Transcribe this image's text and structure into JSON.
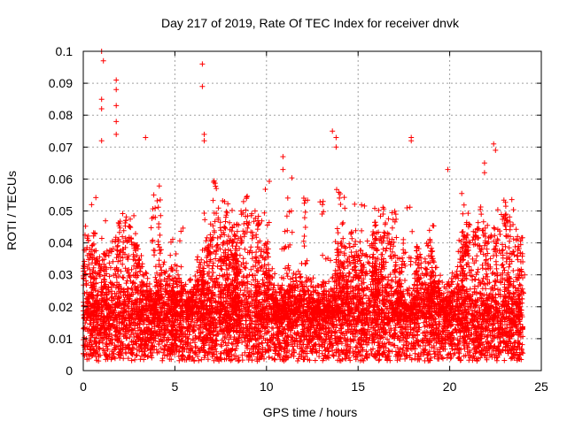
{
  "chart_data": {
    "type": "scatter",
    "title": "Day 217 of 2019, Rate Of TEC Index for receiver dnvk",
    "xlabel": "GPS time / hours",
    "ylabel": "ROTI / TECUs",
    "xlim": [
      0,
      25
    ],
    "ylim": [
      0,
      0.1
    ],
    "x_ticks": [
      0,
      5,
      10,
      15,
      20,
      25
    ],
    "x_tick_labels": [
      "0",
      "5",
      "10",
      "15",
      "20",
      "25"
    ],
    "y_ticks": [
      0,
      0.01,
      0.02,
      0.03,
      0.04,
      0.05,
      0.06,
      0.07,
      0.08,
      0.09,
      0.1
    ],
    "y_tick_labels": [
      "0",
      "0.01",
      "0.02",
      "0.03",
      "0.04",
      "0.05",
      "0.06",
      "0.07",
      "0.08",
      "0.09",
      "0.1"
    ],
    "grid": true,
    "marker": "plus",
    "color": "#ff0000",
    "series": [
      {
        "name": "ROTI",
        "x_range": [
          0,
          24
        ],
        "dense_band": [
          0.005,
          0.03
        ],
        "notable_points": [
          {
            "x": 1.0,
            "y": 0.1
          },
          {
            "x": 1.1,
            "y": 0.097
          },
          {
            "x": 1.0,
            "y": 0.085
          },
          {
            "x": 1.0,
            "y": 0.082
          },
          {
            "x": 1.0,
            "y": 0.072
          },
          {
            "x": 1.8,
            "y": 0.091
          },
          {
            "x": 1.8,
            "y": 0.088
          },
          {
            "x": 1.8,
            "y": 0.083
          },
          {
            "x": 1.8,
            "y": 0.078
          },
          {
            "x": 1.8,
            "y": 0.074
          },
          {
            "x": 3.4,
            "y": 0.073
          },
          {
            "x": 6.5,
            "y": 0.096
          },
          {
            "x": 6.5,
            "y": 0.089
          },
          {
            "x": 6.6,
            "y": 0.074
          },
          {
            "x": 6.6,
            "y": 0.072
          },
          {
            "x": 10.9,
            "y": 0.067
          },
          {
            "x": 10.9,
            "y": 0.063
          },
          {
            "x": 13.6,
            "y": 0.075
          },
          {
            "x": 13.8,
            "y": 0.073
          },
          {
            "x": 13.8,
            "y": 0.07
          },
          {
            "x": 17.9,
            "y": 0.073
          },
          {
            "x": 17.9,
            "y": 0.072
          },
          {
            "x": 19.9,
            "y": 0.063
          },
          {
            "x": 22.4,
            "y": 0.071
          },
          {
            "x": 22.5,
            "y": 0.069
          },
          {
            "x": 21.9,
            "y": 0.065
          },
          {
            "x": 21.9,
            "y": 0.062
          }
        ]
      }
    ]
  }
}
